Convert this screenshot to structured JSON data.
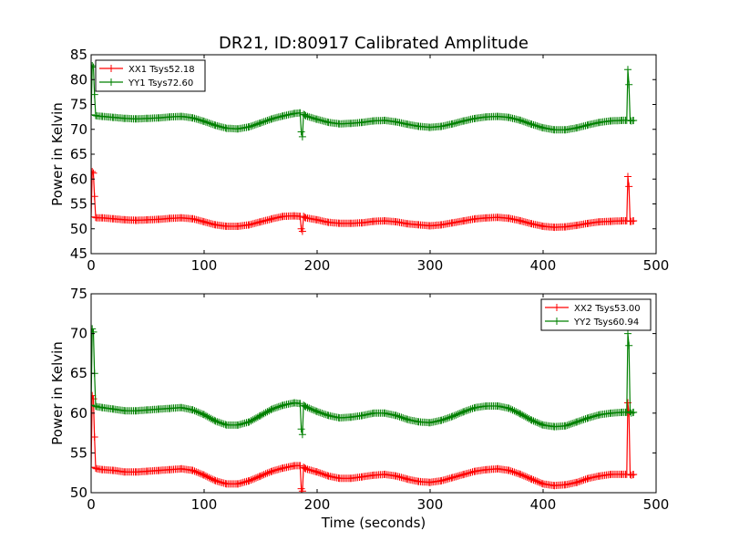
{
  "figure": {
    "title": "DR21, ID:80917 Calibrated Amplitude",
    "xlabel": "Time (seconds)"
  },
  "colors": {
    "red": "#ff0000",
    "green": "#008000"
  },
  "chart_data": [
    {
      "type": "line",
      "title": "DR21, ID:80917 Calibrated Amplitude",
      "xlabel": "",
      "ylabel": "Power in Kelvin",
      "xlim": [
        0,
        500
      ],
      "ylim": [
        45,
        85
      ],
      "xticks": [
        0,
        100,
        200,
        300,
        400,
        500
      ],
      "yticks": [
        45,
        50,
        55,
        60,
        65,
        70,
        75,
        80,
        85
      ],
      "grid": false,
      "legend_position": "top-left",
      "marker": "plus",
      "series": [
        {
          "name": "XX1 Tsys52.18",
          "color": "#ff0000",
          "x": [
            0,
            1,
            2,
            3,
            4,
            5,
            10,
            20,
            30,
            40,
            50,
            60,
            70,
            80,
            90,
            100,
            110,
            120,
            130,
            140,
            150,
            160,
            170,
            180,
            185,
            186,
            187,
            188,
            189,
            190,
            200,
            210,
            220,
            230,
            240,
            250,
            260,
            270,
            280,
            290,
            300,
            310,
            320,
            330,
            340,
            350,
            360,
            370,
            380,
            390,
            400,
            410,
            420,
            430,
            440,
            450,
            460,
            470,
            474,
            475,
            476,
            477,
            478,
            480
          ],
          "y": [
            52.4,
            61.5,
            61.2,
            56.5,
            52.3,
            52.2,
            52.2,
            52.0,
            51.8,
            51.7,
            51.8,
            51.9,
            52.1,
            52.2,
            52.0,
            51.4,
            50.8,
            50.5,
            50.5,
            50.8,
            51.4,
            52.0,
            52.5,
            52.6,
            52.5,
            50.0,
            49.5,
            52.5,
            52.3,
            52.2,
            51.8,
            51.3,
            51.1,
            51.1,
            51.2,
            51.5,
            51.6,
            51.4,
            51.0,
            50.8,
            50.6,
            50.8,
            51.2,
            51.6,
            52.0,
            52.2,
            52.3,
            52.1,
            51.6,
            51.0,
            50.5,
            50.3,
            50.4,
            50.7,
            51.1,
            51.4,
            51.5,
            51.6,
            51.6,
            60.5,
            58.5,
            51.5,
            51.5,
            51.6
          ]
        },
        {
          "name": "YY1 Tsys72.60",
          "color": "#008000",
          "x": [
            0,
            1,
            2,
            3,
            4,
            5,
            10,
            20,
            30,
            40,
            50,
            60,
            70,
            80,
            90,
            100,
            110,
            120,
            130,
            140,
            150,
            160,
            170,
            180,
            185,
            186,
            187,
            188,
            189,
            190,
            200,
            210,
            220,
            230,
            240,
            250,
            260,
            270,
            280,
            290,
            300,
            310,
            320,
            330,
            340,
            350,
            360,
            370,
            380,
            390,
            400,
            410,
            420,
            430,
            440,
            450,
            460,
            470,
            474,
            475,
            476,
            477,
            478,
            480
          ],
          "y": [
            72.9,
            82.8,
            82.5,
            77.0,
            72.8,
            72.7,
            72.6,
            72.4,
            72.2,
            72.1,
            72.2,
            72.3,
            72.5,
            72.6,
            72.3,
            71.6,
            70.8,
            70.2,
            70.1,
            70.5,
            71.3,
            72.1,
            72.7,
            73.2,
            73.3,
            69.5,
            68.5,
            73.0,
            72.9,
            72.7,
            72.0,
            71.4,
            71.1,
            71.2,
            71.4,
            71.7,
            71.8,
            71.5,
            71.0,
            70.6,
            70.4,
            70.6,
            71.1,
            71.7,
            72.2,
            72.5,
            72.6,
            72.4,
            71.8,
            71.0,
            70.3,
            69.9,
            69.9,
            70.3,
            70.9,
            71.4,
            71.7,
            71.8,
            71.8,
            82.0,
            79.0,
            71.8,
            71.7,
            71.8
          ]
        }
      ]
    },
    {
      "type": "line",
      "title": "",
      "xlabel": "Time (seconds)",
      "ylabel": "Power in Kelvin",
      "xlim": [
        0,
        500
      ],
      "ylim": [
        50,
        75
      ],
      "xticks": [
        0,
        100,
        200,
        300,
        400,
        500
      ],
      "yticks": [
        50,
        55,
        60,
        65,
        70,
        75
      ],
      "grid": false,
      "legend_position": "top-right",
      "marker": "plus",
      "series": [
        {
          "name": "XX2 Tsys53.00",
          "color": "#ff0000",
          "x": [
            0,
            1,
            2,
            3,
            4,
            5,
            10,
            20,
            30,
            40,
            50,
            60,
            70,
            80,
            90,
            100,
            110,
            120,
            130,
            140,
            150,
            160,
            170,
            180,
            185,
            186,
            187,
            188,
            189,
            190,
            200,
            210,
            220,
            230,
            240,
            250,
            260,
            270,
            280,
            290,
            300,
            310,
            320,
            330,
            340,
            350,
            360,
            370,
            380,
            390,
            400,
            410,
            420,
            430,
            440,
            450,
            460,
            470,
            474,
            475,
            476,
            477,
            478,
            480
          ],
          "y": [
            53.2,
            62.2,
            61.8,
            57.0,
            53.1,
            53.0,
            52.9,
            52.8,
            52.6,
            52.6,
            52.7,
            52.8,
            52.9,
            53.0,
            52.8,
            52.2,
            51.5,
            51.1,
            51.1,
            51.5,
            52.1,
            52.7,
            53.1,
            53.4,
            53.4,
            50.5,
            50.2,
            53.2,
            53.1,
            53.0,
            52.6,
            52.1,
            51.8,
            51.8,
            52.0,
            52.2,
            52.3,
            52.1,
            51.7,
            51.4,
            51.3,
            51.5,
            51.9,
            52.3,
            52.7,
            52.9,
            53.0,
            52.8,
            52.3,
            51.7,
            51.1,
            50.9,
            51.0,
            51.3,
            51.8,
            52.1,
            52.3,
            52.3,
            52.3,
            61.3,
            60.0,
            52.3,
            52.2,
            52.3
          ]
        },
        {
          "name": "YY2 Tsys60.94",
          "color": "#008000",
          "x": [
            0,
            1,
            2,
            3,
            4,
            5,
            10,
            20,
            30,
            40,
            50,
            60,
            70,
            80,
            90,
            100,
            110,
            120,
            130,
            140,
            150,
            160,
            170,
            180,
            185,
            186,
            187,
            188,
            189,
            190,
            200,
            210,
            220,
            230,
            240,
            250,
            260,
            270,
            280,
            290,
            300,
            310,
            320,
            330,
            340,
            350,
            360,
            370,
            380,
            390,
            400,
            410,
            420,
            430,
            440,
            450,
            460,
            470,
            474,
            475,
            476,
            477,
            478,
            480
          ],
          "y": [
            61.0,
            70.6,
            70.2,
            65.0,
            60.9,
            60.8,
            60.7,
            60.5,
            60.3,
            60.3,
            60.4,
            60.5,
            60.6,
            60.7,
            60.4,
            59.8,
            59.0,
            58.5,
            58.5,
            58.9,
            59.7,
            60.5,
            61.0,
            61.3,
            61.2,
            58.0,
            57.3,
            61.0,
            60.9,
            60.8,
            60.2,
            59.7,
            59.4,
            59.5,
            59.7,
            60.0,
            60.0,
            59.7,
            59.2,
            58.9,
            58.8,
            59.1,
            59.6,
            60.2,
            60.7,
            60.9,
            60.9,
            60.6,
            59.9,
            59.1,
            58.5,
            58.3,
            58.4,
            58.9,
            59.4,
            59.8,
            60.0,
            60.1,
            60.1,
            70.0,
            68.5,
            60.2,
            60.0,
            60.1
          ]
        }
      ]
    }
  ]
}
